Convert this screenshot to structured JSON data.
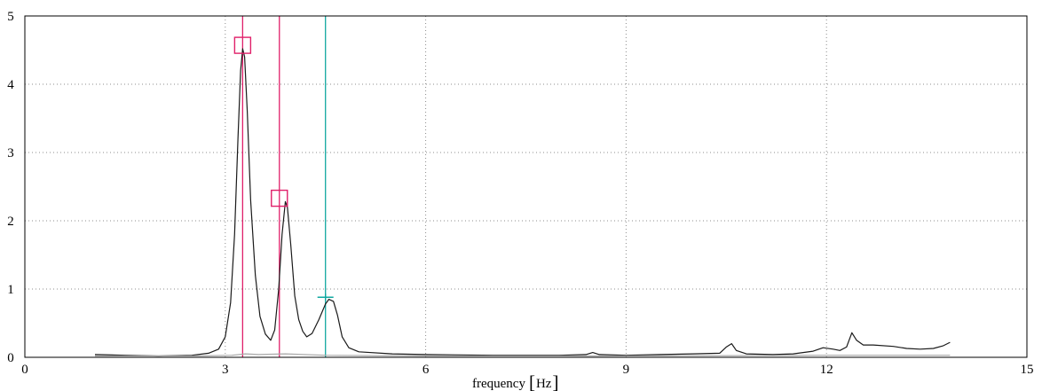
{
  "chart_data": {
    "type": "line",
    "title": "",
    "xlabel": "frequency",
    "xunit": "Hz",
    "ylabel": "",
    "xlim": [
      0,
      15
    ],
    "ylim": [
      0,
      5
    ],
    "x_ticks": [
      0,
      3,
      6,
      9,
      12,
      15
    ],
    "y_ticks": [
      0,
      1,
      2,
      3,
      4,
      5
    ],
    "grid": true,
    "series": [
      {
        "color": "#1a1a1a",
        "points": [
          [
            1.05,
            0.04
          ],
          [
            1.5,
            0.03
          ],
          [
            2.0,
            0.02
          ],
          [
            2.5,
            0.03
          ],
          [
            2.75,
            0.06
          ],
          [
            2.9,
            0.12
          ],
          [
            3.0,
            0.3
          ],
          [
            3.08,
            0.8
          ],
          [
            3.14,
            1.8
          ],
          [
            3.19,
            3.2
          ],
          [
            3.23,
            4.2
          ],
          [
            3.26,
            4.52
          ],
          [
            3.29,
            4.4
          ],
          [
            3.33,
            3.6
          ],
          [
            3.38,
            2.3
          ],
          [
            3.45,
            1.2
          ],
          [
            3.52,
            0.6
          ],
          [
            3.6,
            0.34
          ],
          [
            3.68,
            0.25
          ],
          [
            3.74,
            0.4
          ],
          [
            3.8,
            1.0
          ],
          [
            3.85,
            1.8
          ],
          [
            3.9,
            2.28
          ],
          [
            3.93,
            2.2
          ],
          [
            3.98,
            1.65
          ],
          [
            4.04,
            0.9
          ],
          [
            4.1,
            0.55
          ],
          [
            4.16,
            0.38
          ],
          [
            4.22,
            0.3
          ],
          [
            4.3,
            0.35
          ],
          [
            4.4,
            0.55
          ],
          [
            4.5,
            0.78
          ],
          [
            4.55,
            0.85
          ],
          [
            4.62,
            0.82
          ],
          [
            4.68,
            0.62
          ],
          [
            4.75,
            0.3
          ],
          [
            4.85,
            0.14
          ],
          [
            5.0,
            0.08
          ],
          [
            5.5,
            0.05
          ],
          [
            6.0,
            0.04
          ],
          [
            7.0,
            0.03
          ],
          [
            8.0,
            0.03
          ],
          [
            8.4,
            0.04
          ],
          [
            8.5,
            0.07
          ],
          [
            8.6,
            0.04
          ],
          [
            9.0,
            0.03
          ],
          [
            9.5,
            0.04
          ],
          [
            10.0,
            0.05
          ],
          [
            10.4,
            0.06
          ],
          [
            10.5,
            0.15
          ],
          [
            10.58,
            0.2
          ],
          [
            10.65,
            0.1
          ],
          [
            10.8,
            0.05
          ],
          [
            11.2,
            0.04
          ],
          [
            11.5,
            0.05
          ],
          [
            11.8,
            0.09
          ],
          [
            11.95,
            0.14
          ],
          [
            12.1,
            0.12
          ],
          [
            12.2,
            0.1
          ],
          [
            12.3,
            0.15
          ],
          [
            12.38,
            0.36
          ],
          [
            12.45,
            0.25
          ],
          [
            12.55,
            0.18
          ],
          [
            12.7,
            0.18
          ],
          [
            13.0,
            0.16
          ],
          [
            13.2,
            0.13
          ],
          [
            13.4,
            0.12
          ],
          [
            13.6,
            0.13
          ],
          [
            13.75,
            0.17
          ],
          [
            13.85,
            0.22
          ]
        ]
      },
      {
        "color": "#a8a8a8",
        "points": [
          [
            1.05,
            0.02
          ],
          [
            2.5,
            0.02
          ],
          [
            3.1,
            0.03
          ],
          [
            3.3,
            0.05
          ],
          [
            3.5,
            0.04
          ],
          [
            3.9,
            0.05
          ],
          [
            4.5,
            0.03
          ],
          [
            6.0,
            0.02
          ],
          [
            9.0,
            0.02
          ],
          [
            12.0,
            0.03
          ],
          [
            13.85,
            0.03
          ]
        ]
      }
    ],
    "cursors": [
      {
        "x": 3.26,
        "color": "#e0206a"
      },
      {
        "x": 3.81,
        "color": "#e0206a"
      },
      {
        "x": 4.5,
        "color": "#10a8a0"
      }
    ],
    "peak_markers": [
      {
        "x": 3.26,
        "y": 4.57,
        "color": "#e0206a"
      },
      {
        "x": 3.81,
        "y": 2.33,
        "color": "#e0206a"
      }
    ],
    "cursor_marker": {
      "x": 4.5,
      "y": 0.88,
      "color": "#10a8a0"
    }
  }
}
